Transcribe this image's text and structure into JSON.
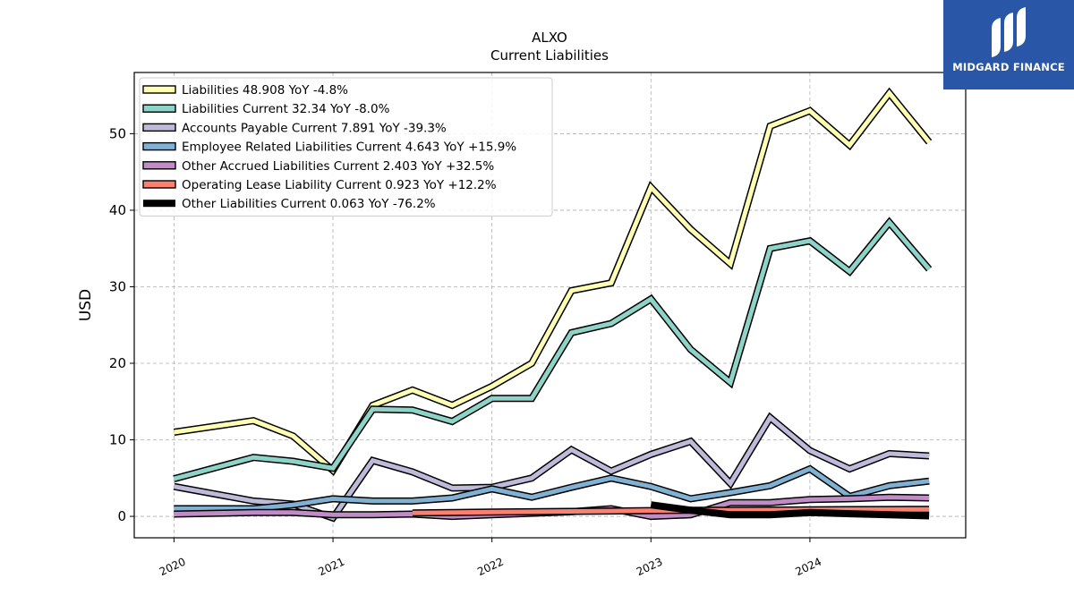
{
  "chart_data": {
    "type": "line",
    "title": "ALXO",
    "subtitle": "Current  Liabilities",
    "ylabel": "USD",
    "xlabel": "",
    "ylim": [
      -2.8,
      58
    ],
    "xlim": [
      2019.75,
      2024.98
    ],
    "yticks": [
      0,
      10,
      20,
      30,
      40,
      50
    ],
    "xticks": [
      {
        "label": "2020",
        "value": 2020.0
      },
      {
        "label": "2021",
        "value": 2021.0
      },
      {
        "label": "2022",
        "value": 2022.0
      },
      {
        "label": "2023",
        "value": 2023.0
      },
      {
        "label": "2024",
        "value": 2024.0
      }
    ],
    "grid": true,
    "legend_position": "top-left",
    "series": [
      {
        "name": "Liabilities",
        "legend": "Liabilities  48.908 YoY -4.8%",
        "color": "#ffffb3",
        "width": 5,
        "x": [
          2020.0,
          2020.5,
          2020.75,
          2021.0,
          2021.25,
          2021.5,
          2021.75,
          2022.0,
          2022.25,
          2022.5,
          2022.75,
          2023.0,
          2023.25,
          2023.5,
          2023.75,
          2024.0,
          2024.25,
          2024.5,
          2024.75
        ],
        "y": [
          11.0,
          12.5,
          10.5,
          6.0,
          14.5,
          16.5,
          14.5,
          17.0,
          20.0,
          29.5,
          30.5,
          43.0,
          37.5,
          33.0,
          51.0,
          53.0,
          48.5,
          55.3,
          48.9
        ]
      },
      {
        "name": "Liabilities Current",
        "legend": "Liabilities Current  32.34 YoY -8.0%",
        "color": "#8dd3c7",
        "width": 5,
        "x": [
          2020.0,
          2020.5,
          2020.75,
          2021.0,
          2021.25,
          2021.5,
          2021.75,
          2022.0,
          2022.25,
          2022.5,
          2022.75,
          2023.0,
          2023.25,
          2023.5,
          2023.75,
          2024.0,
          2024.25,
          2024.5,
          2024.75
        ],
        "y": [
          4.9,
          7.7,
          7.2,
          6.3,
          14.0,
          13.9,
          12.4,
          15.4,
          15.4,
          24.0,
          25.2,
          28.4,
          21.8,
          17.5,
          35.0,
          36.0,
          32.0,
          38.4,
          32.3
        ]
      },
      {
        "name": "Accounts Payable Current",
        "legend": "Accounts Payable Current  7.891 YoY -39.3%",
        "color": "#bebada",
        "width": 5,
        "x": [
          2020.0,
          2020.5,
          2020.75,
          2021.0,
          2021.25,
          2021.5,
          2021.75,
          2022.0,
          2022.25,
          2022.5,
          2022.75,
          2023.0,
          2023.25,
          2023.5,
          2023.75,
          2024.0,
          2024.25,
          2024.5,
          2024.75
        ],
        "y": [
          3.9,
          2.0,
          1.6,
          -0.2,
          7.3,
          5.8,
          3.7,
          3.8,
          5.0,
          8.7,
          5.9,
          8.1,
          9.8,
          4.3,
          12.9,
          8.6,
          6.2,
          8.2,
          7.9
        ]
      },
      {
        "name": "Employee Related Liabilities Current",
        "legend": "Employee Related Liabilities Current  4.643 YoY +15.9%",
        "color": "#80b1d3",
        "width": 5,
        "x": [
          2020.0,
          2020.5,
          2020.75,
          2021.0,
          2021.25,
          2021.5,
          2021.75,
          2022.0,
          2022.25,
          2022.5,
          2022.75,
          2023.0,
          2023.25,
          2023.5,
          2023.75,
          2024.0,
          2024.25,
          2024.5,
          2024.75
        ],
        "y": [
          1.0,
          1.0,
          1.5,
          2.3,
          2.0,
          2.0,
          2.4,
          3.6,
          2.5,
          3.8,
          5.0,
          3.9,
          2.3,
          3.1,
          4.0,
          6.2,
          2.6,
          4.0,
          4.6
        ]
      },
      {
        "name": "Other Accrued Liabilities Current",
        "legend": "Other Accrued Liabilities Current  2.403 YoY +32.5%",
        "color": "#c08cc6",
        "width": 5,
        "x": [
          2020.0,
          2020.5,
          2020.75,
          2021.0,
          2021.25,
          2021.5,
          2021.75,
          2022.0,
          2022.25,
          2022.5,
          2022.75,
          2023.0,
          2023.25,
          2023.5,
          2023.75,
          2024.0,
          2024.25,
          2024.5,
          2024.75
        ],
        "y": [
          0.3,
          0.5,
          0.5,
          0.2,
          0.2,
          0.3,
          0.0,
          0.2,
          0.4,
          0.6,
          1.0,
          0.0,
          0.2,
          1.8,
          1.8,
          2.2,
          2.3,
          2.5,
          2.4
        ]
      },
      {
        "name": "Operating Lease Liability Current",
        "legend": "Operating Lease Liability Current  0.923 YoY +12.2%",
        "color": "#fb8072",
        "width": 5,
        "x": [
          2021.5,
          2021.75,
          2022.0,
          2022.25,
          2022.5,
          2022.75,
          2023.0,
          2023.25,
          2023.5,
          2023.75,
          2024.0,
          2024.25,
          2024.5,
          2024.75
        ],
        "y": [
          0.45,
          0.5,
          0.55,
          0.6,
          0.65,
          0.7,
          0.75,
          0.8,
          0.8,
          0.82,
          0.85,
          0.88,
          0.9,
          0.92
        ]
      },
      {
        "name": "Other Liabilities Current",
        "legend": "Other Liabilities Current  0.063 YoY -76.2%",
        "color": "#000000",
        "width": 8,
        "x": [
          2023.0,
          2023.25,
          2023.5,
          2023.75,
          2024.0,
          2024.25,
          2024.5,
          2024.75
        ],
        "y": [
          1.5,
          0.8,
          0.2,
          0.2,
          0.5,
          0.35,
          0.2,
          0.06
        ]
      }
    ]
  },
  "logo": {
    "text": "MIDGARD FINANCE",
    "color": "#2a56a8"
  }
}
